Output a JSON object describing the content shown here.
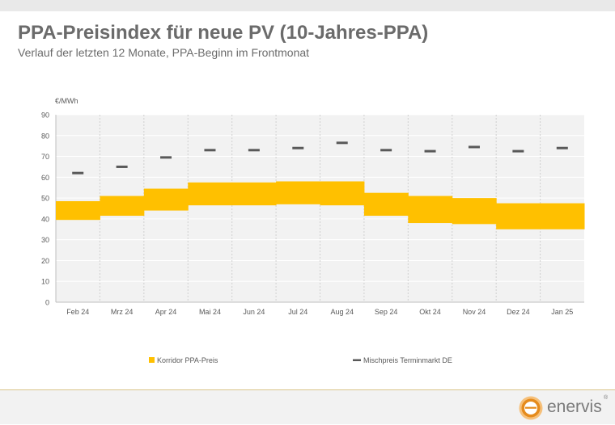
{
  "header": {
    "title": "PPA-Preisindex für neue PV (10-Jahres-PPA)",
    "subtitle": "Verlauf der letzten 12 Monate, PPA-Beginn im Frontmonat"
  },
  "brand": {
    "name": "enervis",
    "mark": "®",
    "accent": "#e58b1d"
  },
  "chart_data": {
    "type": "bar",
    "ylabel": "€/MWh",
    "ylim": [
      0,
      90
    ],
    "yticks": [
      0,
      10,
      20,
      30,
      40,
      50,
      60,
      70,
      80,
      90
    ],
    "grid": true,
    "legend_placement": "bottom",
    "categories": [
      "Feb 24",
      "Mrz 24",
      "Apr 24",
      "Mai 24",
      "Jun 24",
      "Jul 24",
      "Aug 24",
      "Sep 24",
      "Okt 24",
      "Nov 24",
      "Dez 24",
      "Jan 25"
    ],
    "series": [
      {
        "name": "Korridor PPA-Preis",
        "kind": "range",
        "color": "#ffc000",
        "low": [
          39.5,
          41.5,
          44,
          46.5,
          46.5,
          47,
          46.5,
          41.5,
          38,
          37.5,
          35,
          35
        ],
        "high": [
          48.5,
          51,
          54.5,
          57.5,
          57.5,
          58,
          58,
          52.5,
          51,
          50,
          47.5,
          47.5
        ]
      },
      {
        "name": "Mischpreis Terminmarkt DE",
        "kind": "marker",
        "color": "#595959",
        "values": [
          62,
          65,
          69.5,
          73,
          73,
          74,
          76.5,
          73,
          72.5,
          74.5,
          72.5,
          74
        ]
      }
    ]
  }
}
